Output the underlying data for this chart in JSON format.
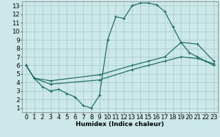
{
  "xlabel": "Humidex (Indice chaleur)",
  "bg_color": "#cce8e8",
  "grid_color": "#aacccc",
  "line_color": "#1a6b5e",
  "xlim": [
    -0.5,
    23.5
  ],
  "ylim": [
    0.5,
    13.5
  ],
  "xticks": [
    0,
    1,
    2,
    3,
    4,
    5,
    6,
    7,
    8,
    9,
    10,
    11,
    12,
    13,
    14,
    15,
    16,
    17,
    18,
    19,
    20,
    21,
    22,
    23
  ],
  "yticks": [
    1,
    2,
    3,
    4,
    5,
    6,
    7,
    8,
    9,
    10,
    11,
    12,
    13
  ],
  "line1_x": [
    0,
    1,
    2,
    3,
    4,
    5,
    6,
    7,
    8,
    9,
    10,
    11,
    12,
    13,
    14,
    15,
    16,
    17,
    18,
    19,
    20,
    21,
    22,
    23
  ],
  "line1_y": [
    6,
    4.5,
    3.5,
    3.0,
    3.2,
    2.7,
    2.3,
    1.3,
    1.0,
    2.5,
    9.0,
    11.7,
    11.5,
    13.0,
    13.3,
    13.3,
    13.1,
    12.3,
    10.5,
    8.7,
    7.5,
    7.0,
    6.5,
    6.0
  ],
  "line2_x": [
    0,
    1,
    3,
    9,
    13,
    15,
    17,
    19,
    21,
    23
  ],
  "line2_y": [
    6,
    4.5,
    4.2,
    4.9,
    6.0,
    6.5,
    7.0,
    8.7,
    8.5,
    6.5
  ],
  "line3_x": [
    0,
    1,
    3,
    9,
    13,
    15,
    17,
    19,
    21,
    23
  ],
  "line3_y": [
    6,
    4.5,
    3.8,
    4.3,
    5.5,
    6.0,
    6.5,
    7.0,
    6.8,
    6.2
  ],
  "font_size": 6.5,
  "lw": 0.9
}
